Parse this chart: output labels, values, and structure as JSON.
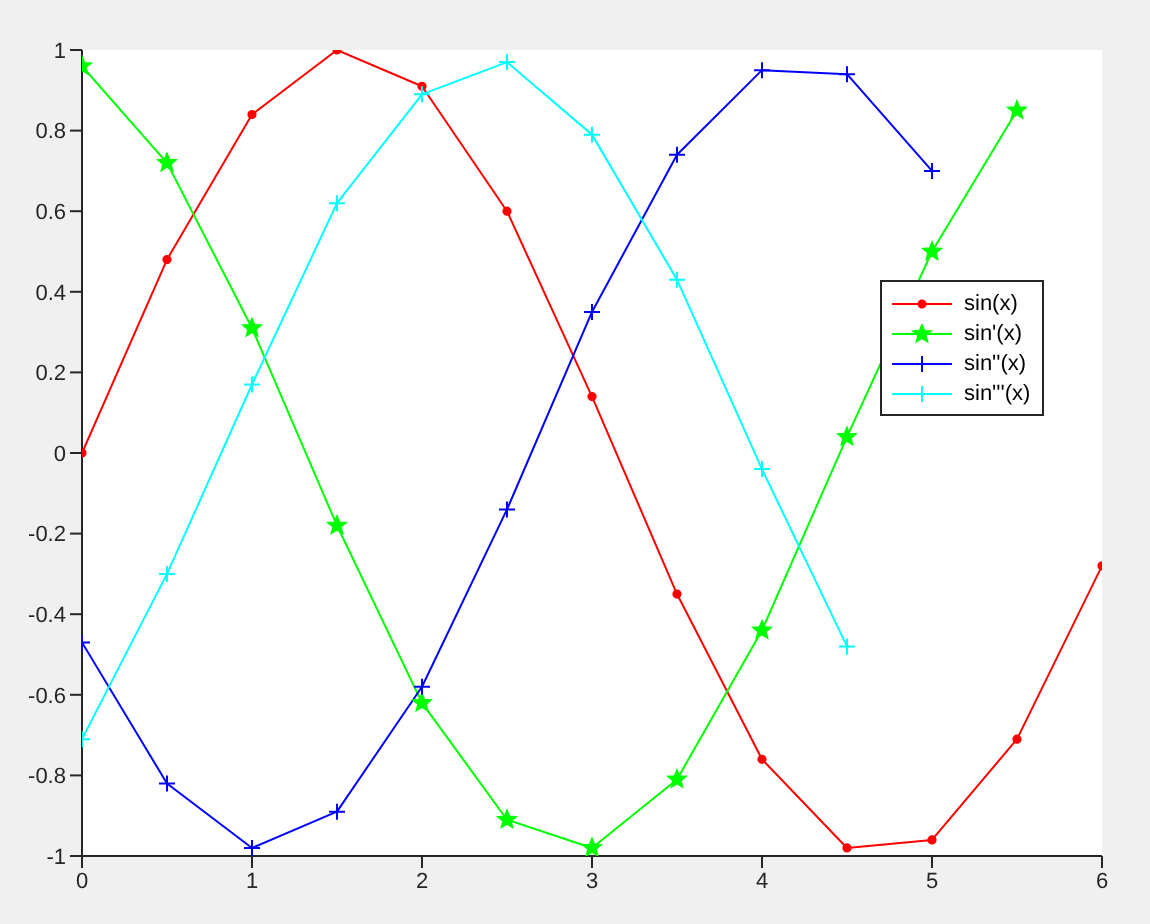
{
  "chart_data": {
    "type": "line",
    "xlim": [
      0,
      6
    ],
    "xticks": [
      0,
      1,
      2,
      3,
      4,
      5,
      6
    ],
    "ylim": [
      -1,
      1
    ],
    "yticks": [
      -1,
      -0.8,
      -0.6,
      -0.4,
      -0.2,
      0,
      0.2,
      0.4,
      0.6,
      0.8,
      1
    ],
    "grid": false,
    "legend": "right",
    "line_style": "solid",
    "series": [
      {
        "name": "sin(x)",
        "color": "#ff0000",
        "marker": "circle",
        "x": [
          0,
          0.5,
          1,
          1.5,
          2,
          2.5,
          3,
          3.5,
          4,
          4.5,
          5,
          5.5,
          6
        ],
        "values": [
          0,
          0.48,
          0.84,
          1.0,
          0.91,
          0.6,
          0.14,
          -0.35,
          -0.76,
          -0.98,
          -0.96,
          -0.71,
          -0.28
        ]
      },
      {
        "name": "sin'(x)",
        "color": "#00ff00",
        "marker": "star",
        "x": [
          0,
          0.5,
          1,
          1.5,
          2,
          2.5,
          3,
          3.5,
          4,
          4.5,
          5,
          5.5
        ],
        "values": [
          0.96,
          0.72,
          0.31,
          -0.18,
          -0.62,
          -0.91,
          -0.98,
          -0.81,
          -0.44,
          0.04,
          0.5,
          0.85
        ]
      },
      {
        "name": "sin''(x)",
        "color": "#0000ff",
        "marker": "cross",
        "x": [
          0,
          0.5,
          1,
          1.5,
          2,
          2.5,
          3,
          3.5,
          4,
          4.5,
          5
        ],
        "values": [
          -0.47,
          -0.82,
          -0.98,
          -0.89,
          -0.58,
          -0.14,
          0.35,
          0.74,
          0.95,
          0.94,
          0.7
        ]
      },
      {
        "name": "sin'''(x)",
        "color": "#00ffff",
        "marker": "cross",
        "x": [
          0,
          0.5,
          1,
          1.5,
          2,
          2.5,
          3,
          3.5,
          4,
          4.5
        ],
        "values": [
          -0.71,
          -0.3,
          0.17,
          0.62,
          0.89,
          0.97,
          0.79,
          0.43,
          -0.04,
          -0.48
        ]
      }
    ]
  }
}
